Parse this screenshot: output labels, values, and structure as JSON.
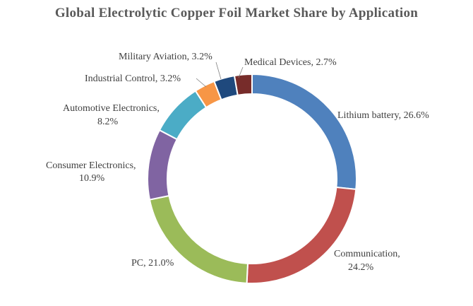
{
  "chart_data": {
    "type": "pie",
    "variant": "donut",
    "title": "Global Electrolytic Copper Foil Market Share by Application",
    "slices": [
      {
        "label": "Lithium  battery",
        "value": 26.6,
        "value_text": "26.6%",
        "color": "#4F81BD"
      },
      {
        "label": "Communication,",
        "value": 24.2,
        "value_text": "24.2%",
        "color": "#C0504D"
      },
      {
        "label": "PC",
        "value": 21.0,
        "value_text": "21.0%",
        "color": "#9BBB59"
      },
      {
        "label": "Consumer Electronics,",
        "value": 10.9,
        "value_text": "10.9%",
        "color": "#8064A2"
      },
      {
        "label": "Automotive Electronics,",
        "value": 8.2,
        "value_text": "8.2%",
        "color": "#4BACC6"
      },
      {
        "label": "Industrial  Control",
        "value": 3.2,
        "value_text": "3.2%",
        "color": "#F79646"
      },
      {
        "label": "Military  Aviation",
        "value": 3.2,
        "value_text": "3.2%",
        "color": "#1F497D"
      },
      {
        "label": "Medical Devices",
        "value": 2.7,
        "value_text": "2.7%",
        "color": "#772C2A"
      }
    ]
  }
}
